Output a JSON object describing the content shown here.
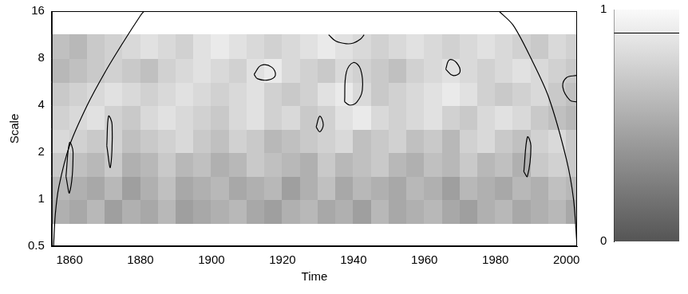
{
  "chart_data": {
    "type": "heatmap",
    "x_label": "Time",
    "y_label": "Scale",
    "xlim": [
      1855,
      2003
    ],
    "xticks": [
      1860,
      1880,
      1900,
      1920,
      1940,
      1960,
      1980,
      2000
    ],
    "ylim": [
      0.5,
      16
    ],
    "yticks": [
      0.5,
      1,
      2,
      4,
      8,
      16
    ],
    "log": "y",
    "grid": false,
    "time_edges": [
      1855,
      1860,
      1865,
      1870,
      1875,
      1880,
      1885,
      1890,
      1895,
      1900,
      1905,
      1910,
      1915,
      1920,
      1925,
      1930,
      1935,
      1940,
      1945,
      1950,
      1955,
      1960,
      1965,
      1970,
      1975,
      1980,
      1985,
      1990,
      1995,
      2000,
      2003
    ],
    "scale_edges": [
      0.71,
      1,
      1.41,
      2,
      2.83,
      4,
      5.66,
      8,
      11.3
    ],
    "cells": [
      [
        0.55,
        0.5,
        0.6,
        0.45,
        0.55,
        0.5,
        0.6,
        0.45,
        0.5,
        0.55,
        0.6,
        0.5,
        0.45,
        0.55,
        0.6,
        0.5,
        0.55,
        0.45,
        0.6,
        0.5,
        0.55,
        0.6,
        0.5,
        0.45,
        0.55,
        0.6,
        0.5,
        0.55,
        0.6,
        0.5
      ],
      [
        0.6,
        0.55,
        0.5,
        0.6,
        0.45,
        0.55,
        0.65,
        0.5,
        0.55,
        0.6,
        0.5,
        0.55,
        0.6,
        0.45,
        0.55,
        0.65,
        0.5,
        0.6,
        0.55,
        0.5,
        0.6,
        0.55,
        0.45,
        0.6,
        0.55,
        0.5,
        0.6,
        0.55,
        0.65,
        0.6
      ],
      [
        0.7,
        0.65,
        0.6,
        0.7,
        0.55,
        0.6,
        0.7,
        0.6,
        0.65,
        0.55,
        0.6,
        0.7,
        0.65,
        0.6,
        0.55,
        0.7,
        0.6,
        0.65,
        0.7,
        0.6,
        0.55,
        0.65,
        0.6,
        0.7,
        0.6,
        0.65,
        0.55,
        0.7,
        0.75,
        0.7
      ],
      [
        0.8,
        0.75,
        0.7,
        0.75,
        0.65,
        0.7,
        0.75,
        0.8,
        0.7,
        0.65,
        0.75,
        0.7,
        0.6,
        0.65,
        0.7,
        0.75,
        0.8,
        0.65,
        0.7,
        0.75,
        0.65,
        0.7,
        0.6,
        0.75,
        0.8,
        0.7,
        0.65,
        0.75,
        0.8,
        0.7
      ],
      [
        0.75,
        0.8,
        0.85,
        0.75,
        0.7,
        0.8,
        0.85,
        0.8,
        0.75,
        0.7,
        0.8,
        0.85,
        0.75,
        0.8,
        0.7,
        0.75,
        0.85,
        0.9,
        0.8,
        0.75,
        0.8,
        0.85,
        0.75,
        0.7,
        0.8,
        0.85,
        0.8,
        0.7,
        0.65,
        0.6
      ],
      [
        0.7,
        0.75,
        0.8,
        0.85,
        0.8,
        0.75,
        0.8,
        0.85,
        0.8,
        0.75,
        0.8,
        0.85,
        0.75,
        0.7,
        0.75,
        0.85,
        0.9,
        0.8,
        0.7,
        0.75,
        0.8,
        0.85,
        0.9,
        0.85,
        0.75,
        0.7,
        0.75,
        0.8,
        0.7,
        0.65
      ],
      [
        0.6,
        0.65,
        0.7,
        0.75,
        0.7,
        0.65,
        0.75,
        0.8,
        0.85,
        0.8,
        0.75,
        0.85,
        0.9,
        0.8,
        0.75,
        0.7,
        0.8,
        0.75,
        0.7,
        0.65,
        0.75,
        0.8,
        0.85,
        0.8,
        0.75,
        0.8,
        0.85,
        0.8,
        0.75,
        0.7
      ],
      [
        0.65,
        0.6,
        0.7,
        0.75,
        0.8,
        0.85,
        0.8,
        0.75,
        0.85,
        0.9,
        0.85,
        0.8,
        0.75,
        0.8,
        0.85,
        0.9,
        0.85,
        0.8,
        0.75,
        0.8,
        0.85,
        0.8,
        0.75,
        0.8,
        0.85,
        0.8,
        0.75,
        0.7,
        0.8,
        0.75
      ]
    ],
    "cone": [
      {
        "x": [
          1855.5,
          1856,
          1857,
          1860,
          1865,
          1870,
          1875,
          1880,
          1881
        ],
        "y": [
          0.5,
          0.8,
          1.2,
          2.2,
          4,
          6.5,
          10,
          15,
          16
        ]
      },
      {
        "x": [
          1981,
          1985,
          1990,
          1995,
          2000,
          2002,
          2003
        ],
        "y": [
          16,
          13,
          8,
          4.5,
          1.8,
          1,
          0.5
        ]
      }
    ],
    "contours": [
      {
        "x": [
          1937.5,
          1938,
          1940,
          1942,
          1942.5,
          1941,
          1939,
          1937.5
        ],
        "y": [
          4.2,
          6.5,
          7.5,
          6.8,
          5,
          4.2,
          4,
          4.2
        ]
      },
      {
        "x": [
          1912,
          1914,
          1917,
          1918,
          1916,
          1913,
          1912
        ],
        "y": [
          6.3,
          7.2,
          7,
          6.2,
          5.8,
          5.9,
          6.3
        ]
      },
      {
        "x": [
          1933,
          1935,
          1938,
          1940,
          1942,
          1943
        ],
        "y": [
          11.3,
          10.3,
          9.9,
          10,
          10.6,
          11.3
        ]
      },
      {
        "x": [
          1966,
          1967,
          1969,
          1970,
          1968,
          1966
        ],
        "y": [
          6.8,
          7.8,
          7.5,
          6.5,
          6.2,
          6.8
        ]
      },
      {
        "x": [
          2003,
          2000,
          1999,
          2001,
          2003
        ],
        "y": [
          6.2,
          6,
          5.2,
          4.3,
          4.2
        ]
      },
      {
        "x": [
          1870.5,
          1871,
          1872,
          1871.5,
          1870.5
        ],
        "y": [
          2.2,
          3.4,
          3,
          1.6,
          2.2
        ]
      },
      {
        "x": [
          1859,
          1860,
          1861,
          1860,
          1859
        ],
        "y": [
          1.4,
          2.3,
          2,
          1.1,
          1.4
        ]
      },
      {
        "x": [
          1929.5,
          1930.5,
          1931.5,
          1930.5,
          1929.5
        ],
        "y": [
          2.9,
          3.4,
          3,
          2.7,
          2.9
        ]
      },
      {
        "x": [
          1988,
          1989,
          1990,
          1989,
          1988
        ],
        "y": [
          1.5,
          2.5,
          2.2,
          1.4,
          1.5
        ]
      }
    ],
    "colorbar": {
      "range": [
        0,
        1
      ],
      "ticks": [
        0,
        1
      ],
      "level": 0.9
    }
  }
}
